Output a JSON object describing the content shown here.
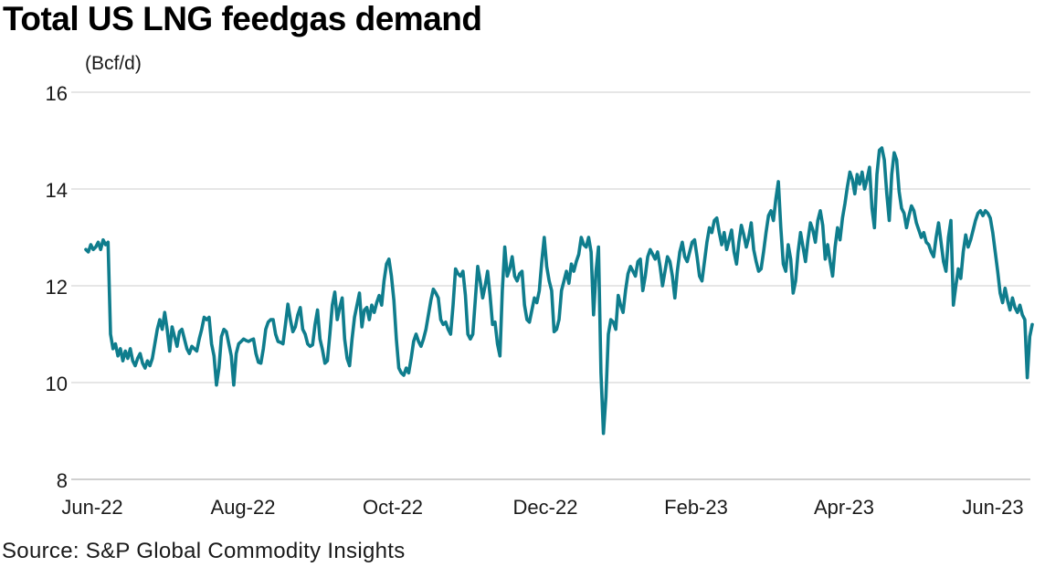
{
  "title": "Total US LNG feedgas demand",
  "unit_label": "(Bcf/d)",
  "source": "Source: S&P Global Commodity Insights",
  "colors": {
    "line": "#0f7d8d",
    "grid": "#cdcdcd",
    "baseline": "#a0a0a0",
    "text": "#1a1a1a",
    "title": "#000000"
  },
  "chart_data": {
    "type": "line",
    "title": "Total US LNG feedgas demand",
    "ylabel": "(Bcf/d)",
    "xlabel": "",
    "ylim": [
      8,
      16
    ],
    "yticks": [
      16,
      14,
      12,
      10,
      8
    ],
    "x_tick_labels": [
      "Jun-22",
      "Aug-22",
      "Oct-22",
      "Dec-22",
      "Feb-23",
      "Apr-23",
      "Jun-23"
    ],
    "grid": "horizontal",
    "legend": "none",
    "series": [
      {
        "name": "Total US LNG feedgas demand (Bcf/d)",
        "start": "2022-05-29",
        "freq": "daily",
        "values": [
          12.75,
          12.7,
          12.85,
          12.75,
          12.8,
          12.9,
          12.75,
          12.95,
          12.85,
          12.9,
          11.0,
          10.7,
          10.8,
          10.55,
          10.7,
          10.45,
          10.65,
          10.5,
          10.7,
          10.45,
          10.35,
          10.5,
          10.6,
          10.4,
          10.3,
          10.45,
          10.35,
          10.5,
          10.8,
          11.1,
          11.3,
          11.1,
          11.45,
          11.1,
          10.65,
          11.15,
          10.95,
          10.75,
          11.05,
          11.1,
          10.9,
          10.7,
          10.6,
          10.75,
          10.7,
          10.65,
          10.9,
          11.1,
          11.35,
          11.3,
          11.35,
          10.8,
          10.55,
          9.95,
          10.3,
          10.95,
          11.1,
          11.05,
          10.8,
          10.55,
          9.95,
          10.6,
          10.8,
          10.85,
          10.9,
          10.87,
          10.85,
          10.88,
          10.9,
          10.6,
          10.42,
          10.4,
          10.7,
          11.1,
          11.25,
          11.3,
          11.3,
          11.0,
          10.85,
          10.83,
          10.8,
          11.2,
          11.62,
          11.3,
          11.05,
          11.15,
          11.4,
          11.55,
          11.1,
          11.0,
          10.8,
          10.75,
          10.78,
          11.2,
          11.5,
          10.9,
          10.68,
          10.4,
          10.45,
          11.0,
          11.6,
          11.87,
          11.3,
          11.55,
          11.75,
          10.9,
          10.5,
          10.35,
          10.9,
          11.35,
          11.6,
          11.85,
          11.15,
          11.5,
          11.55,
          11.3,
          11.6,
          11.45,
          11.65,
          11.8,
          11.6,
          12.1,
          12.45,
          12.55,
          12.2,
          11.7,
          10.9,
          10.3,
          10.2,
          10.15,
          10.3,
          10.2,
          10.5,
          10.85,
          11.0,
          10.85,
          10.75,
          10.9,
          11.1,
          11.4,
          11.7,
          11.93,
          11.85,
          11.75,
          11.3,
          11.2,
          11.25,
          11.1,
          11.0,
          11.6,
          12.35,
          12.25,
          12.2,
          12.3,
          11.8,
          11.0,
          10.9,
          11.0,
          11.7,
          12.4,
          12.1,
          11.75,
          12.0,
          12.3,
          11.8,
          11.2,
          11.25,
          10.8,
          10.55,
          11.9,
          12.8,
          12.2,
          12.35,
          12.6,
          12.2,
          12.1,
          12.25,
          12.3,
          11.6,
          11.3,
          11.25,
          11.5,
          11.75,
          11.65,
          11.9,
          12.5,
          13.0,
          12.4,
          12.1,
          11.9,
          11.05,
          11.1,
          11.3,
          11.9,
          12.1,
          12.3,
          12.05,
          12.45,
          12.3,
          12.5,
          12.65,
          13.0,
          12.85,
          12.8,
          13.0,
          12.7,
          11.4,
          12.3,
          12.8,
          10.2,
          8.95,
          9.7,
          11.0,
          11.3,
          11.25,
          11.1,
          11.8,
          11.6,
          11.45,
          11.9,
          12.25,
          12.4,
          12.3,
          12.2,
          12.5,
          12.55,
          11.9,
          12.2,
          12.6,
          12.75,
          12.65,
          12.55,
          12.7,
          12.4,
          12.0,
          12.3,
          12.6,
          12.5,
          12.2,
          11.75,
          12.3,
          12.7,
          12.9,
          12.6,
          12.5,
          12.7,
          12.9,
          12.95,
          12.6,
          12.2,
          12.1,
          12.5,
          12.9,
          13.2,
          13.1,
          13.35,
          13.4,
          13.1,
          12.85,
          13.1,
          12.75,
          12.95,
          13.15,
          12.7,
          12.45,
          12.9,
          13.25,
          13.05,
          12.8,
          13.0,
          13.3,
          12.75,
          12.5,
          12.3,
          12.35,
          12.7,
          13.1,
          13.45,
          13.55,
          13.35,
          13.8,
          14.15,
          13.2,
          12.45,
          12.3,
          12.85,
          12.55,
          11.85,
          12.1,
          12.7,
          13.1,
          12.8,
          12.5,
          12.95,
          13.3,
          13.15,
          12.9,
          13.35,
          13.55,
          13.25,
          12.55,
          12.85,
          12.5,
          12.2,
          12.8,
          13.2,
          12.95,
          13.4,
          13.7,
          14.05,
          14.35,
          14.2,
          13.9,
          14.3,
          14.1,
          14.35,
          14.0,
          14.2,
          14.45,
          13.6,
          13.2,
          14.3,
          14.8,
          14.85,
          14.6,
          13.9,
          13.35,
          14.3,
          14.75,
          14.6,
          13.95,
          13.6,
          13.5,
          13.2,
          13.45,
          13.65,
          13.55,
          13.3,
          13.15,
          13.0,
          13.1,
          12.9,
          12.85,
          12.7,
          12.6,
          13.0,
          13.3,
          12.9,
          12.5,
          12.3,
          13.0,
          13.35,
          11.6,
          12.0,
          12.35,
          12.15,
          12.7,
          13.05,
          12.8,
          12.95,
          13.15,
          13.35,
          13.5,
          13.55,
          13.45,
          13.55,
          13.5,
          13.4,
          13.1,
          12.7,
          12.3,
          11.85,
          11.65,
          11.95,
          11.7,
          11.5,
          11.75,
          11.55,
          11.45,
          11.6,
          11.4,
          11.3,
          10.1,
          10.95,
          11.2
        ]
      }
    ]
  }
}
